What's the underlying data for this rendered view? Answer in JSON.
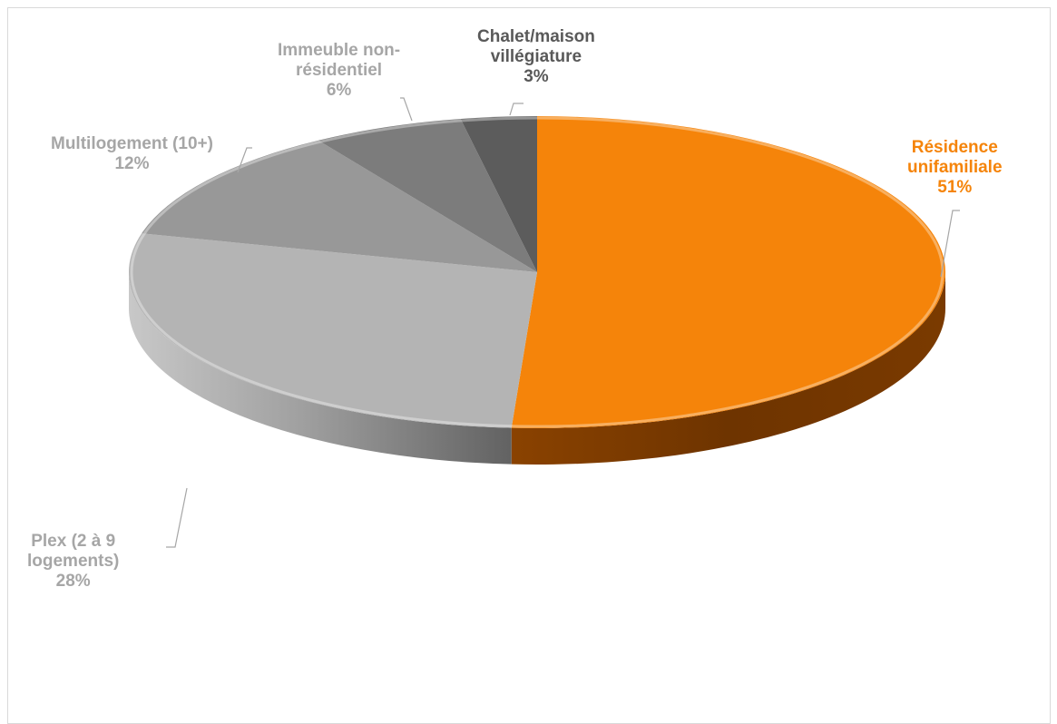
{
  "chart_data": {
    "type": "pie",
    "title": "",
    "slices": [
      {
        "label_lines": [
          "Résidence",
          "unifamiliale"
        ],
        "percent_label": "51%",
        "value": 51,
        "color": "#f5840a"
      },
      {
        "label_lines": [
          "Plex (2 à 9",
          "logements)"
        ],
        "percent_label": "28%",
        "value": 28,
        "color": "#b4b4b4"
      },
      {
        "label_lines": [
          "Multilogement (10+)"
        ],
        "percent_label": "12%",
        "value": 12,
        "color": "#989898"
      },
      {
        "label_lines": [
          "Immeuble non-",
          "résidentiel"
        ],
        "percent_label": "6%",
        "value": 6,
        "color": "#7c7c7c"
      },
      {
        "label_lines": [
          "Chalet/maison",
          "villégiature"
        ],
        "percent_label": "3%",
        "value": 3,
        "color": "#5c5c5c"
      }
    ],
    "label_colors": [
      "#f5840a",
      "#a6a6a6",
      "#a6a6a6",
      "#a6a6a6",
      "#595959"
    ]
  }
}
